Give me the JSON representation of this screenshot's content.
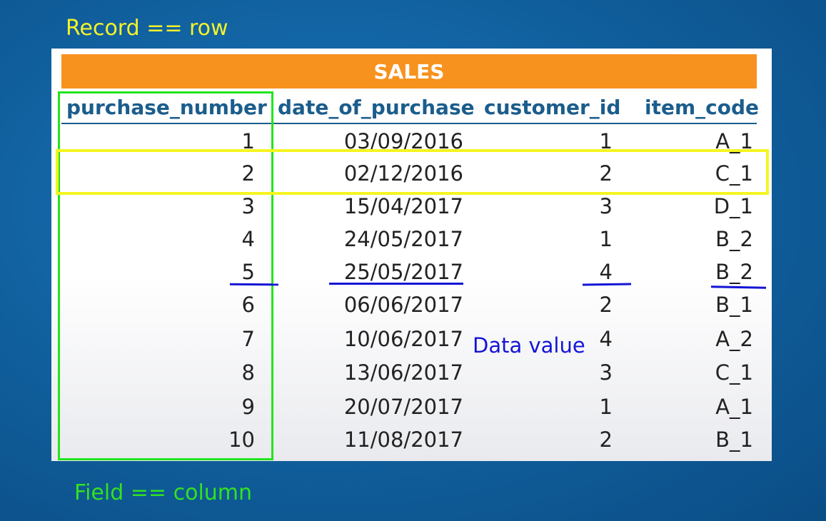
{
  "annotations": {
    "record_label": "Record == row",
    "field_label": "Field == column",
    "data_value_label": "Data value"
  },
  "table": {
    "title": "SALES",
    "columns": [
      "purchase_number",
      "date_of_purchase",
      "customer_id",
      "item_code"
    ],
    "rows": [
      [
        "1",
        "03/09/2016",
        "1",
        "A_1"
      ],
      [
        "2",
        "02/12/2016",
        "2",
        "C_1"
      ],
      [
        "3",
        "15/04/2017",
        "3",
        "D_1"
      ],
      [
        "4",
        "24/05/2017",
        "1",
        "B_2"
      ],
      [
        "5",
        "25/05/2017",
        "4",
        "B_2"
      ],
      [
        "6",
        "06/06/2017",
        "2",
        "B_1"
      ],
      [
        "7",
        "10/06/2017",
        "4",
        "A_2"
      ],
      [
        "8",
        "13/06/2017",
        "3",
        "C_1"
      ],
      [
        "9",
        "20/07/2017",
        "1",
        "A_1"
      ],
      [
        "10",
        "11/08/2017",
        "2",
        "B_1"
      ]
    ]
  },
  "colors": {
    "banner": "#f7921e",
    "header_text": "#1b5d8c",
    "record_highlight": "#f6f51f",
    "field_highlight": "#22e51c",
    "data_value_mark": "#1414d6"
  }
}
